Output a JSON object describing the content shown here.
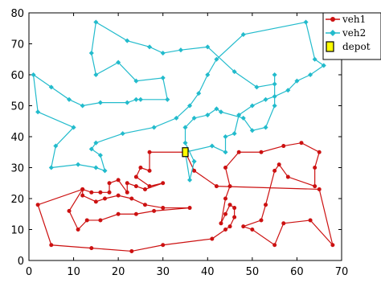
{
  "chart_data": {
    "type": "line",
    "title": "",
    "xlabel": "",
    "ylabel": "",
    "xlim": [
      0,
      70
    ],
    "ylim": [
      0,
      80
    ],
    "xticks": [
      "0",
      "10",
      "20",
      "30",
      "40",
      "50",
      "60",
      "70"
    ],
    "yticks": [
      "0",
      "10",
      "20",
      "30",
      "40",
      "50",
      "60",
      "70",
      "80"
    ],
    "grid": false,
    "legend_position": "top-right",
    "series": [
      {
        "name": "veh1",
        "color": "#cc1111",
        "marker": "circle",
        "points": [
          [
            35,
            35
          ],
          [
            27,
            35
          ],
          [
            27,
            29
          ],
          [
            25,
            30
          ],
          [
            24,
            27
          ],
          [
            27,
            24
          ],
          [
            30,
            25
          ],
          [
            26,
            23
          ],
          [
            24,
            24
          ],
          [
            22,
            25
          ],
          [
            22,
            22
          ],
          [
            20,
            26
          ],
          [
            18,
            25
          ],
          [
            18,
            22
          ],
          [
            16,
            22
          ],
          [
            14,
            22
          ],
          [
            12,
            23
          ],
          [
            12,
            21
          ],
          [
            15,
            19
          ],
          [
            17,
            20
          ],
          [
            20,
            21
          ],
          [
            23,
            20
          ],
          [
            26,
            18
          ],
          [
            30,
            17
          ],
          [
            36,
            17
          ],
          [
            28,
            16
          ],
          [
            24,
            15
          ],
          [
            20,
            15
          ],
          [
            16,
            13
          ],
          [
            13,
            13
          ],
          [
            11,
            10
          ],
          [
            9,
            16
          ],
          [
            12,
            23
          ],
          [
            2,
            18
          ],
          [
            5,
            5
          ],
          [
            14,
            4
          ],
          [
            23,
            3
          ],
          [
            30,
            5
          ],
          [
            41,
            7
          ],
          [
            44,
            10
          ],
          [
            45,
            11
          ],
          [
            46,
            14
          ],
          [
            46,
            17
          ],
          [
            45,
            18
          ],
          [
            44,
            15
          ],
          [
            43,
            12
          ],
          [
            44,
            20
          ],
          [
            45,
            24
          ],
          [
            44,
            30
          ],
          [
            47,
            35
          ],
          [
            52,
            35
          ],
          [
            57,
            37
          ],
          [
            61,
            38
          ],
          [
            65,
            35
          ],
          [
            64,
            30
          ],
          [
            64,
            24
          ],
          [
            58,
            27
          ],
          [
            56,
            31
          ],
          [
            55,
            29
          ],
          [
            53,
            18
          ],
          [
            52,
            13
          ],
          [
            48,
            11
          ],
          [
            50,
            10
          ],
          [
            55,
            5
          ],
          [
            57,
            12
          ],
          [
            63,
            13
          ],
          [
            68,
            5
          ],
          [
            65,
            23
          ],
          [
            42,
            24
          ],
          [
            37,
            29
          ],
          [
            35,
            35
          ]
        ]
      },
      {
        "name": "veh2",
        "color": "#22bbcc",
        "marker": "diamond",
        "points": [
          [
            35,
            35
          ],
          [
            41,
            37
          ],
          [
            44,
            35
          ],
          [
            44,
            40
          ],
          [
            46,
            41
          ],
          [
            47,
            47
          ],
          [
            50,
            50
          ],
          [
            53,
            52
          ],
          [
            55,
            53
          ],
          [
            58,
            55
          ],
          [
            60,
            58
          ],
          [
            63,
            60
          ],
          [
            66,
            63
          ],
          [
            64,
            65
          ],
          [
            62,
            77
          ],
          [
            48,
            73
          ],
          [
            42,
            65
          ],
          [
            40,
            60
          ],
          [
            38,
            54
          ],
          [
            36,
            50
          ],
          [
            33,
            46
          ],
          [
            28,
            43
          ],
          [
            21,
            41
          ],
          [
            15,
            38
          ],
          [
            14,
            36
          ],
          [
            16,
            34
          ],
          [
            17,
            29
          ],
          [
            15,
            30
          ],
          [
            11,
            31
          ],
          [
            5,
            30
          ],
          [
            6,
            37
          ],
          [
            10,
            43
          ],
          [
            2,
            48
          ],
          [
            1,
            60
          ],
          [
            5,
            56
          ],
          [
            9,
            52
          ],
          [
            12,
            50
          ],
          [
            16,
            51
          ],
          [
            22,
            51
          ],
          [
            24,
            52
          ],
          [
            25,
            52
          ],
          [
            31,
            52
          ],
          [
            30,
            59
          ],
          [
            24,
            58
          ],
          [
            20,
            64
          ],
          [
            15,
            60
          ],
          [
            14,
            67
          ],
          [
            15,
            77
          ],
          [
            22,
            71
          ],
          [
            27,
            69
          ],
          [
            30,
            67
          ],
          [
            34,
            68
          ],
          [
            40,
            69
          ],
          [
            46,
            61
          ],
          [
            51,
            56
          ],
          [
            55,
            57
          ],
          [
            55,
            60
          ],
          [
            55,
            50
          ],
          [
            53,
            43
          ],
          [
            50,
            42
          ],
          [
            48,
            46
          ],
          [
            43,
            48
          ],
          [
            42,
            49
          ],
          [
            40,
            47
          ],
          [
            37,
            46
          ],
          [
            35,
            43
          ],
          [
            35,
            38
          ],
          [
            37,
            32
          ],
          [
            36,
            26
          ],
          [
            35,
            35
          ]
        ]
      },
      {
        "name": "depot",
        "color": "#ffff00",
        "marker": "square",
        "points": [
          [
            35,
            35
          ]
        ]
      }
    ]
  }
}
